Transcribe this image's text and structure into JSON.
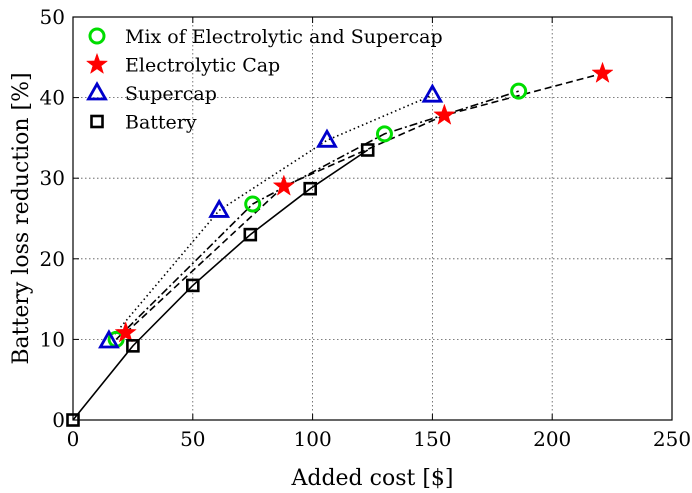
{
  "chart_data": {
    "type": "line",
    "title": "",
    "xlabel": "Added cost [$]",
    "ylabel": "Battery loss reduction [%]",
    "xlim": [
      0,
      250
    ],
    "ylim": [
      0,
      50
    ],
    "xticks": [
      0,
      50,
      100,
      150,
      200,
      250
    ],
    "yticks": [
      0,
      10,
      20,
      30,
      40,
      50
    ],
    "grid": true,
    "legend_position": "top-left",
    "series": [
      {
        "name": "Mix of Electrolytic and Supercap",
        "marker": "circle",
        "line_style": "dashdot",
        "color": "#00dd00",
        "x": [
          18,
          75,
          130,
          186
        ],
        "y": [
          10,
          26.8,
          35.5,
          40.8
        ]
      },
      {
        "name": "Electrolytic Cap",
        "marker": "star",
        "line_style": "dashed",
        "color": "#ff0000",
        "x": [
          22,
          88,
          155,
          221
        ],
        "y": [
          10.8,
          29,
          37.8,
          43
        ]
      },
      {
        "name": "Supercap",
        "marker": "triangle",
        "line_style": "dotted",
        "color": "#0000cc",
        "x": [
          15,
          61,
          106,
          150
        ],
        "y": [
          9.8,
          26,
          34.7,
          40.3
        ]
      },
      {
        "name": "Battery",
        "marker": "square",
        "line_style": "solid",
        "color": "#000000",
        "x": [
          0,
          25,
          50,
          74,
          99,
          123
        ],
        "y": [
          0,
          9.2,
          16.7,
          23,
          28.7,
          33.5
        ]
      }
    ]
  }
}
